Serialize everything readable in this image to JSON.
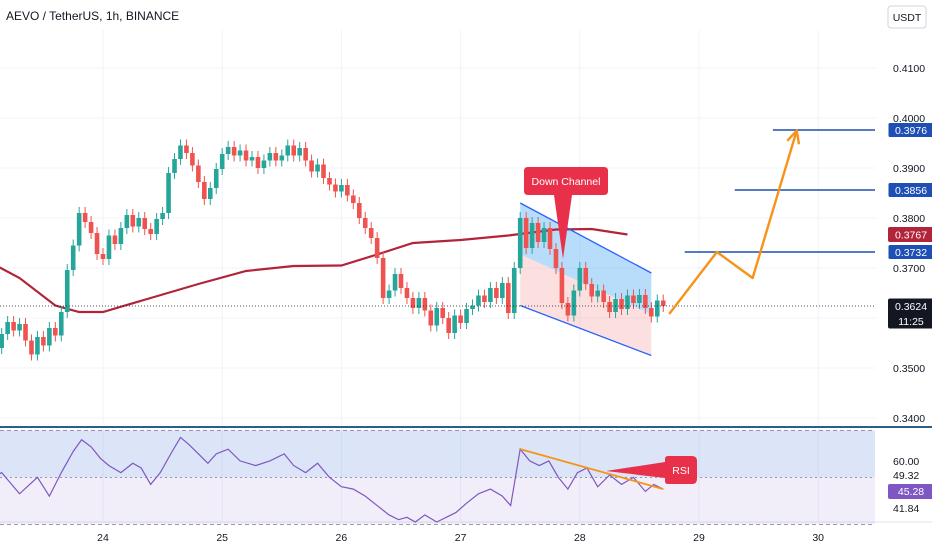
{
  "header": {
    "title": "AEVO / TetherUS, 1h, BINANCE",
    "currency": "USDT"
  },
  "colors": {
    "bull": "#26a69a",
    "bear": "#ef5350",
    "ma": "#b2243a",
    "level": "#1e4fb4",
    "projection": "#f7931a",
    "rsi": "#7e57c2",
    "trend": "#f7931a",
    "callout": "#e8304b"
  },
  "chart_data": [
    {
      "type": "candlestick",
      "title": "AEVO / TetherUS, 1h, BINANCE",
      "x_ticks": [
        "24",
        "25",
        "26",
        "27",
        "28",
        "29",
        "30"
      ],
      "y_ticks": [
        "0.4100",
        "0.4000",
        "0.3900",
        "0.3800",
        "0.3700",
        "0.3600",
        "0.3500",
        "0.3400"
      ],
      "ylim": [
        0.3385,
        0.4245
      ],
      "price_labels": [
        {
          "label": "0.3976",
          "value": 0.3976,
          "kind": "level"
        },
        {
          "label": "0.3856",
          "value": 0.3856,
          "kind": "level"
        },
        {
          "label": "0.3767",
          "value": 0.3767,
          "kind": "ma"
        },
        {
          "label": "0.3732",
          "value": 0.3732,
          "kind": "level"
        },
        {
          "label": "0.3624",
          "value": 0.3624,
          "kind": "current"
        }
      ],
      "countdown": "11:25",
      "horizontal_levels": [
        {
          "price": 0.3976,
          "from_day": 29.62,
          "to_day": 30.6
        },
        {
          "price": 0.3856,
          "from_day": 29.3,
          "to_day": 30.6
        },
        {
          "price": 0.3732,
          "from_day": 28.88,
          "to_day": 30.6
        }
      ],
      "current_price": 0.3624,
      "moving_average": [
        [
          23.0,
          0.3718
        ],
        [
          23.3,
          0.368
        ],
        [
          23.6,
          0.3625
        ],
        [
          23.8,
          0.3612
        ],
        [
          24.0,
          0.3612
        ],
        [
          24.4,
          0.364
        ],
        [
          24.8,
          0.3668
        ],
        [
          25.2,
          0.3694
        ],
        [
          25.6,
          0.3704
        ],
        [
          26.0,
          0.3705
        ],
        [
          26.3,
          0.3727
        ],
        [
          26.6,
          0.375
        ],
        [
          27.0,
          0.3756
        ],
        [
          27.4,
          0.3765
        ],
        [
          27.8,
          0.3777
        ],
        [
          28.1,
          0.3778
        ],
        [
          28.4,
          0.3767
        ]
      ],
      "candles_approx": [
        [
          23.0,
          0.3625,
          0.3608
        ],
        [
          23.05,
          0.3608,
          0.3575
        ],
        [
          23.1,
          0.3575,
          0.354
        ],
        [
          23.15,
          0.354,
          0.3568
        ],
        [
          23.2,
          0.3568,
          0.3592
        ],
        [
          23.25,
          0.3592,
          0.3575
        ],
        [
          23.3,
          0.3575,
          0.3588
        ],
        [
          23.35,
          0.3588,
          0.3555
        ],
        [
          23.4,
          0.3555,
          0.3527
        ],
        [
          23.45,
          0.3527,
          0.3562
        ],
        [
          23.5,
          0.3562,
          0.3545
        ],
        [
          23.55,
          0.3545,
          0.358
        ],
        [
          23.6,
          0.358,
          0.3565
        ],
        [
          23.65,
          0.3565,
          0.3612
        ],
        [
          23.7,
          0.3612,
          0.3696
        ],
        [
          23.75,
          0.3696,
          0.3745
        ],
        [
          23.8,
          0.3745,
          0.381
        ],
        [
          23.85,
          0.381,
          0.3792
        ],
        [
          23.9,
          0.3792,
          0.377
        ],
        [
          23.95,
          0.377,
          0.3728
        ],
        [
          24.0,
          0.3728,
          0.3718
        ],
        [
          24.05,
          0.3718,
          0.3765
        ],
        [
          24.1,
          0.3765,
          0.3748
        ],
        [
          24.15,
          0.3748,
          0.378
        ],
        [
          24.2,
          0.378,
          0.3806
        ],
        [
          24.25,
          0.3806,
          0.3783
        ],
        [
          24.3,
          0.3783,
          0.38
        ],
        [
          24.35,
          0.38,
          0.3778
        ],
        [
          24.4,
          0.3778,
          0.3768
        ],
        [
          24.45,
          0.3768,
          0.3798
        ],
        [
          24.5,
          0.3798,
          0.381
        ],
        [
          24.55,
          0.381,
          0.389
        ],
        [
          24.6,
          0.389,
          0.3918
        ],
        [
          24.65,
          0.3918,
          0.3945
        ],
        [
          24.7,
          0.3945,
          0.393
        ],
        [
          24.75,
          0.393,
          0.3905
        ],
        [
          24.8,
          0.3905,
          0.3872
        ],
        [
          24.85,
          0.3872,
          0.3838
        ],
        [
          24.9,
          0.3838,
          0.386
        ],
        [
          24.95,
          0.386,
          0.3898
        ],
        [
          25.0,
          0.3898,
          0.3928
        ],
        [
          25.05,
          0.3928,
          0.3942
        ],
        [
          25.1,
          0.3942,
          0.3925
        ],
        [
          25.15,
          0.3925,
          0.3935
        ],
        [
          25.2,
          0.3935,
          0.3915
        ],
        [
          25.25,
          0.3915,
          0.3922
        ],
        [
          25.3,
          0.3922,
          0.39
        ],
        [
          25.35,
          0.39,
          0.3915
        ],
        [
          25.4,
          0.3915,
          0.393
        ],
        [
          25.45,
          0.393,
          0.3915
        ],
        [
          25.5,
          0.3915,
          0.3925
        ],
        [
          25.55,
          0.3925,
          0.3945
        ],
        [
          25.6,
          0.3945,
          0.3925
        ],
        [
          25.65,
          0.3925,
          0.394
        ],
        [
          25.7,
          0.394,
          0.3915
        ],
        [
          25.75,
          0.3915,
          0.3893
        ],
        [
          25.8,
          0.3893,
          0.3907
        ],
        [
          25.85,
          0.3907,
          0.388
        ],
        [
          25.9,
          0.388,
          0.3867
        ],
        [
          25.95,
          0.3867,
          0.3853
        ],
        [
          26.0,
          0.3853,
          0.3866
        ],
        [
          26.05,
          0.3866,
          0.3845
        ],
        [
          26.1,
          0.3845,
          0.383
        ],
        [
          26.15,
          0.383,
          0.38
        ],
        [
          26.2,
          0.38,
          0.378
        ],
        [
          26.25,
          0.378,
          0.376
        ],
        [
          26.3,
          0.376,
          0.372
        ],
        [
          26.35,
          0.372,
          0.364
        ],
        [
          26.4,
          0.364,
          0.3655
        ],
        [
          26.45,
          0.3655,
          0.3688
        ],
        [
          26.5,
          0.3688,
          0.366
        ],
        [
          26.55,
          0.366,
          0.364
        ],
        [
          26.6,
          0.364,
          0.362
        ],
        [
          26.65,
          0.362,
          0.364
        ],
        [
          26.7,
          0.364,
          0.3615
        ],
        [
          26.75,
          0.3615,
          0.3585
        ],
        [
          26.8,
          0.3585,
          0.362
        ],
        [
          26.85,
          0.362,
          0.36
        ],
        [
          26.9,
          0.36,
          0.357
        ],
        [
          26.95,
          0.357,
          0.3605
        ],
        [
          27.0,
          0.3605,
          0.359
        ],
        [
          27.05,
          0.359,
          0.3618
        ],
        [
          27.1,
          0.3618,
          0.3625
        ],
        [
          27.15,
          0.3625,
          0.3645
        ],
        [
          27.2,
          0.3645,
          0.3632
        ],
        [
          27.25,
          0.3632,
          0.366
        ],
        [
          27.3,
          0.366,
          0.364
        ],
        [
          27.35,
          0.364,
          0.367
        ],
        [
          27.4,
          0.367,
          0.361
        ],
        [
          27.45,
          0.361,
          0.37
        ],
        [
          27.5,
          0.37,
          0.38
        ],
        [
          27.55,
          0.38,
          0.374
        ],
        [
          27.6,
          0.374,
          0.379
        ],
        [
          27.65,
          0.379,
          0.3752
        ],
        [
          27.7,
          0.3752,
          0.378
        ],
        [
          27.75,
          0.378,
          0.3738
        ],
        [
          27.8,
          0.3738,
          0.37
        ],
        [
          27.85,
          0.37,
          0.363
        ],
        [
          27.9,
          0.363,
          0.3605
        ],
        [
          27.95,
          0.3605,
          0.3655
        ],
        [
          28.0,
          0.3655,
          0.37
        ],
        [
          28.05,
          0.37,
          0.3668
        ],
        [
          28.1,
          0.3668,
          0.3643
        ],
        [
          28.15,
          0.3643,
          0.3655
        ],
        [
          28.2,
          0.3655,
          0.3632
        ],
        [
          28.25,
          0.3632,
          0.3612
        ],
        [
          28.3,
          0.3612,
          0.3638
        ],
        [
          28.35,
          0.3638,
          0.3618
        ],
        [
          28.4,
          0.3618,
          0.3645
        ],
        [
          28.45,
          0.3645,
          0.363
        ],
        [
          28.5,
          0.363,
          0.3646
        ],
        [
          28.55,
          0.3646,
          0.362
        ],
        [
          28.6,
          0.362,
          0.3603
        ],
        [
          28.65,
          0.3603,
          0.3635
        ],
        [
          28.7,
          0.3635,
          0.3624
        ]
      ],
      "channel": {
        "label": "Down Channel",
        "upper": [
          [
            27.5,
            0.383
          ],
          [
            28.6,
            0.369
          ]
        ],
        "lower": [
          [
            27.5,
            0.3625
          ],
          [
            28.6,
            0.3525
          ]
        ]
      },
      "projection_path": [
        [
          28.75,
          0.3608
        ],
        [
          29.15,
          0.3732
        ],
        [
          29.45,
          0.368
        ],
        [
          29.82,
          0.3975
        ]
      ]
    },
    {
      "type": "line",
      "title": "RSI",
      "y_ticks": [
        "60.00",
        "49.32",
        "41.84"
      ],
      "current_label": "45.28",
      "ylim": [
        31,
        71
      ],
      "bands": [
        70,
        50,
        30
      ],
      "series": [
        {
          "values": [
            [
              23.0,
              48
            ],
            [
              23.15,
              52
            ],
            [
              23.3,
              43
            ],
            [
              23.45,
              50
            ],
            [
              23.55,
              42
            ],
            [
              23.65,
              52
            ],
            [
              23.75,
              61
            ],
            [
              23.82,
              66
            ],
            [
              23.9,
              63
            ],
            [
              23.98,
              58
            ],
            [
              24.05,
              55
            ],
            [
              24.15,
              52
            ],
            [
              24.25,
              56
            ],
            [
              24.32,
              54
            ],
            [
              24.4,
              47
            ],
            [
              24.48,
              52
            ],
            [
              24.58,
              61
            ],
            [
              24.65,
              67
            ],
            [
              24.72,
              64
            ],
            [
              24.8,
              60
            ],
            [
              24.88,
              56
            ],
            [
              24.95,
              60
            ],
            [
              25.05,
              62
            ],
            [
              25.15,
              57
            ],
            [
              25.28,
              55
            ],
            [
              25.4,
              57
            ],
            [
              25.52,
              60
            ],
            [
              25.6,
              55
            ],
            [
              25.7,
              52
            ],
            [
              25.8,
              56
            ],
            [
              25.9,
              50
            ],
            [
              26.0,
              46
            ],
            [
              26.1,
              45
            ],
            [
              26.2,
              42
            ],
            [
              26.3,
              38
            ],
            [
              26.4,
              34
            ],
            [
              26.48,
              32
            ],
            [
              26.55,
              33
            ],
            [
              26.62,
              31
            ],
            [
              26.7,
              34
            ],
            [
              26.8,
              31
            ],
            [
              26.88,
              33
            ],
            [
              26.96,
              35
            ],
            [
              27.05,
              39
            ],
            [
              27.15,
              43
            ],
            [
              27.25,
              45
            ],
            [
              27.35,
              42
            ],
            [
              27.42,
              38
            ],
            [
              27.5,
              62
            ],
            [
              27.58,
              57
            ],
            [
              27.66,
              55
            ],
            [
              27.74,
              57
            ],
            [
              27.82,
              50
            ],
            [
              27.9,
              45
            ],
            [
              27.98,
              52
            ],
            [
              28.06,
              54
            ],
            [
              28.15,
              46
            ],
            [
              28.25,
              51
            ],
            [
              28.35,
              47
            ],
            [
              28.45,
              50
            ],
            [
              28.55,
              44
            ],
            [
              28.62,
              47
            ],
            [
              28.7,
              45
            ]
          ]
        }
      ],
      "trendline": [
        [
          27.5,
          62
        ],
        [
          28.7,
          45
        ]
      ],
      "callout": "RSI"
    }
  ]
}
